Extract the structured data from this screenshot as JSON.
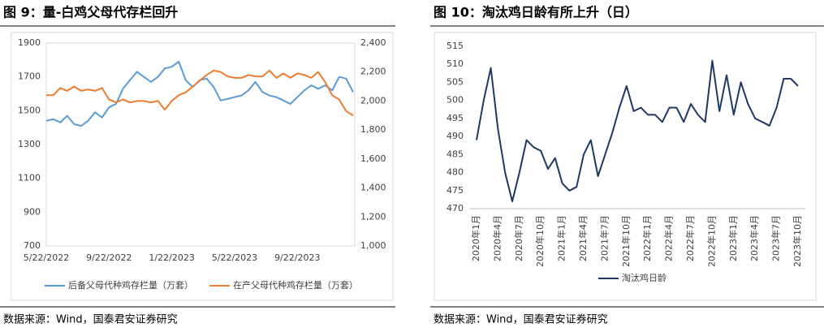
{
  "chart_data": [
    {
      "type": "line",
      "title": "图 9：量-白鸡父母代存栏回升",
      "source": "数据来源：Wind，国泰君安证券研究",
      "categories": [
        "5/22/2022",
        null,
        null,
        null,
        null,
        null,
        null,
        null,
        null,
        "9/22/2022",
        null,
        null,
        null,
        null,
        null,
        null,
        null,
        null,
        "1/22/2023",
        null,
        null,
        null,
        null,
        null,
        null,
        null,
        null,
        "5/22/2023",
        null,
        null,
        null,
        null,
        null,
        null,
        null,
        null,
        "9/22/2023",
        null,
        null,
        null,
        null,
        null,
        null,
        null,
        null
      ],
      "ylim": [
        700,
        1900
      ],
      "yticks": [
        700,
        900,
        1100,
        1300,
        1500,
        1700,
        1900
      ],
      "y2lim": [
        1000,
        2400
      ],
      "y2ticks": [
        {
          "value": 1000,
          "label": "1,000"
        },
        {
          "value": 1200,
          "label": "1,200"
        },
        {
          "value": 1400,
          "label": "1,400"
        },
        {
          "value": 1600,
          "label": "1,600"
        },
        {
          "value": 1800,
          "label": "1,800"
        },
        {
          "value": 2000,
          "label": "2,000"
        },
        {
          "value": 2200,
          "label": "2,200"
        },
        {
          "value": 2400,
          "label": "2,400"
        }
      ],
      "grid": false,
      "series": [
        {
          "name": "后备父母代种鸡存栏量（万套）",
          "color": "#5b9bd5",
          "values": [
            1440,
            1450,
            1430,
            1470,
            1420,
            1410,
            1440,
            1490,
            1460,
            1520,
            1540,
            1630,
            1680,
            1730,
            1700,
            1670,
            1700,
            1750,
            1760,
            1790,
            1680,
            1640,
            1680,
            1690,
            1640,
            1560,
            1570,
            1580,
            1590,
            1620,
            1670,
            1610,
            1590,
            1580,
            1560,
            1540,
            1580,
            1620,
            1650,
            1630,
            1650,
            1620,
            1700,
            1690,
            1610
          ]
        },
        {
          "name": "在产父母代种鸡存栏量（万套）",
          "color": "#ed7d31",
          "axis": "y2",
          "values": [
            2040,
            2040,
            2090,
            2070,
            2100,
            2070,
            2080,
            2070,
            2090,
            2010,
            1990,
            2010,
            1990,
            2000,
            2000,
            1990,
            2000,
            1940,
            2000,
            2040,
            2060,
            2100,
            2140,
            2180,
            2210,
            2200,
            2170,
            2160,
            2160,
            2180,
            2170,
            2170,
            2210,
            2160,
            2190,
            2160,
            2190,
            2180,
            2160,
            2200,
            2130,
            2040,
            2010,
            1930,
            1900
          ]
        }
      ]
    },
    {
      "type": "line",
      "title": "图 10：淘汰鸡日龄有所上升（日）",
      "source": "数据来源：Wind，国泰君安证券研究",
      "categories": [
        "2020年1月",
        null,
        null,
        "2020年4月",
        null,
        null,
        "2020年7月",
        null,
        null,
        "2020年10月",
        null,
        null,
        "2021年1月",
        null,
        null,
        "2021年4月",
        null,
        null,
        "2021年7月",
        null,
        null,
        "2021年10月",
        null,
        null,
        "2022年1月",
        null,
        null,
        "2022年4月",
        null,
        null,
        "2022年7月",
        null,
        null,
        "2022年10月",
        null,
        null,
        "2023年1月",
        null,
        null,
        "2023年4月",
        null,
        null,
        "2023年7月",
        null,
        null,
        "2023年10月"
      ],
      "ylim": [
        470,
        515
      ],
      "yticks": [
        470,
        475,
        480,
        485,
        490,
        495,
        500,
        505,
        510,
        515
      ],
      "grid": false,
      "series": [
        {
          "name": "淘汰鸡日龄",
          "color": "#1f3864",
          "values": [
            489,
            500,
            509,
            492,
            480,
            472,
            480,
            489,
            487,
            486,
            481,
            484,
            477,
            475,
            476,
            485,
            489,
            479,
            485,
            491,
            498,
            504,
            497,
            498,
            496,
            496,
            494,
            498,
            498,
            494,
            499,
            496,
            494,
            511,
            497,
            507,
            496,
            505,
            499,
            495,
            494,
            493,
            498,
            506,
            506,
            504
          ]
        }
      ]
    }
  ]
}
